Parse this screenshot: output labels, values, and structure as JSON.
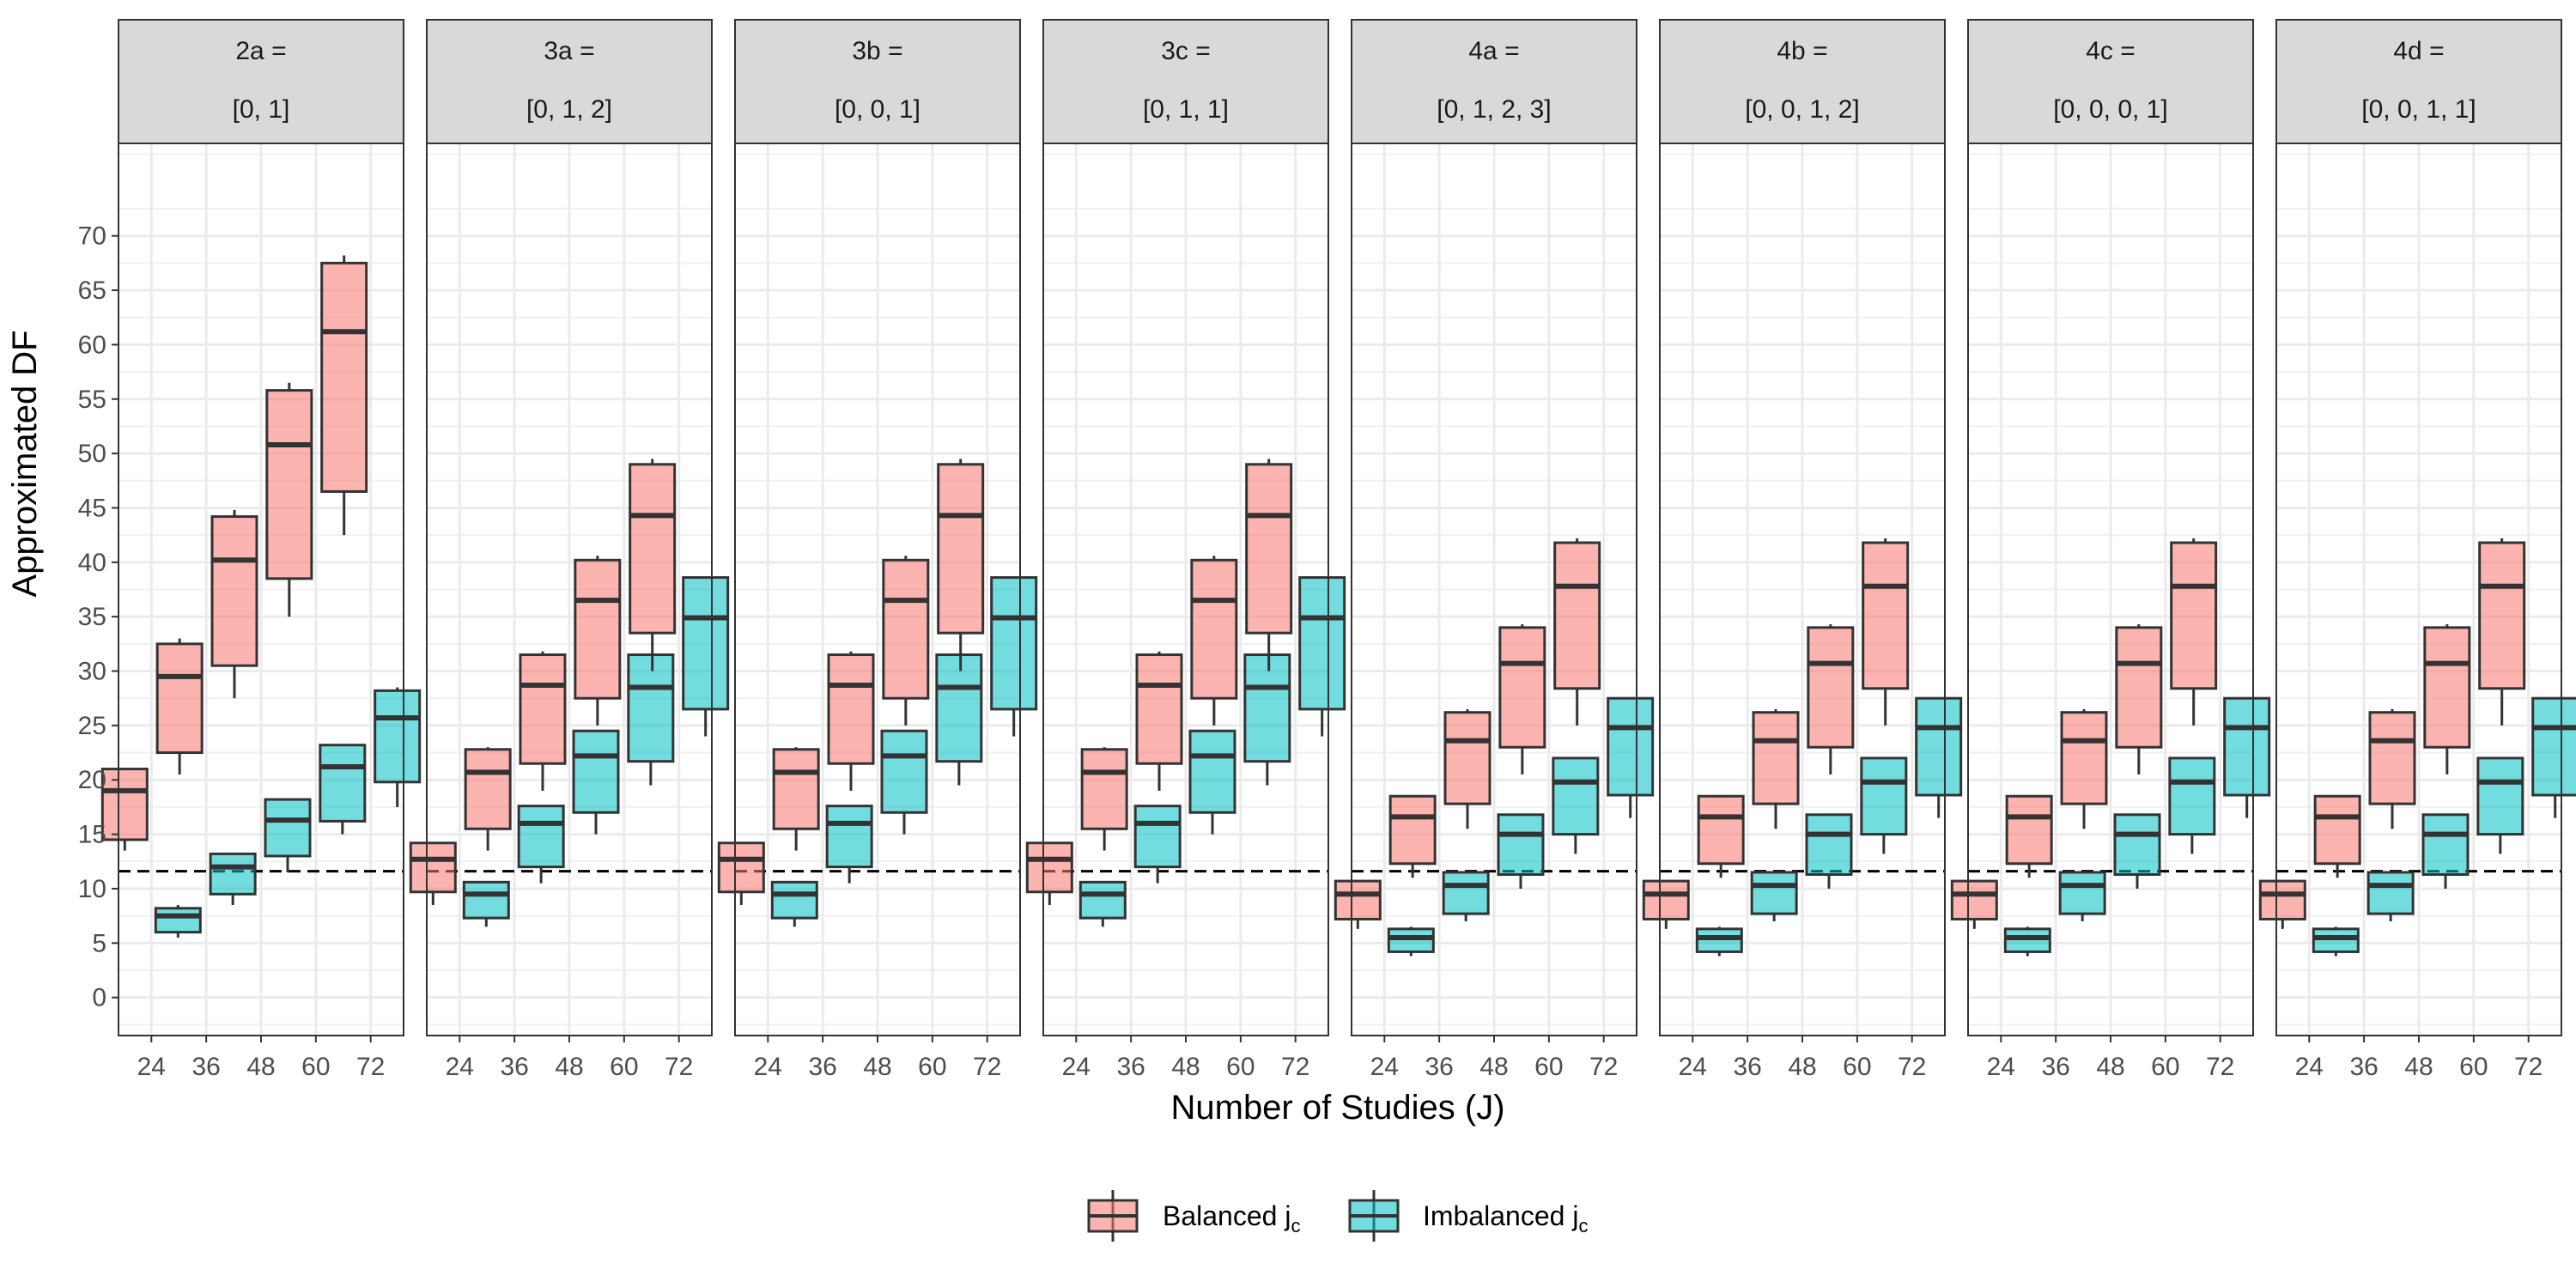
{
  "chart_data": {
    "type": "boxplot",
    "ylabel": "Approximated DF",
    "xlabel": "Number of Studies (J)",
    "categories": [
      "24",
      "36",
      "48",
      "60",
      "72"
    ],
    "y_ticks": [
      0,
      5,
      10,
      15,
      20,
      25,
      30,
      35,
      40,
      45,
      50,
      55,
      60,
      65,
      70
    ],
    "ylim": [
      -3.5,
      78.5
    ],
    "reference_line": 11.6,
    "legend": {
      "position": "bottom",
      "items": [
        {
          "base": "Balanced j",
          "sub": "c",
          "color": "#F8766D"
        },
        {
          "base": "Imbalanced j",
          "sub": "c",
          "color": "#00BFC4"
        }
      ]
    },
    "series_colors": [
      "#F8766D",
      "#00BFC4"
    ],
    "panels": [
      {
        "label_line1": "2a =",
        "label_line2": "[0, 1]",
        "balanced": [
          [
            13.5,
            14.5,
            19,
            21,
            21
          ],
          [
            20.5,
            22.5,
            29.5,
            32.5,
            33
          ],
          [
            27.5,
            30.5,
            40.2,
            44.2,
            44.8
          ],
          [
            35,
            38.5,
            50.8,
            55.8,
            56.5
          ],
          [
            42.5,
            46.5,
            61.2,
            67.5,
            68.2
          ]
        ],
        "imbalanced": [
          [
            5.5,
            6,
            7.5,
            8.2,
            8.5
          ],
          [
            8.5,
            9.5,
            12,
            13.2,
            13.2
          ],
          [
            11.5,
            13,
            16.3,
            18.2,
            18.2
          ],
          [
            15,
            16.2,
            21.2,
            23.2,
            23.2
          ],
          [
            17.5,
            19.8,
            25.7,
            28.2,
            28.5
          ]
        ]
      },
      {
        "label_line1": "3a =",
        "label_line2": "[0, 1, 2]",
        "balanced": [
          [
            8.5,
            9.7,
            12.7,
            14.2,
            14.2
          ],
          [
            13.5,
            15.5,
            20.7,
            22.8,
            23
          ],
          [
            19,
            21.5,
            28.7,
            31.5,
            31.8
          ],
          [
            25,
            27.5,
            36.5,
            40.2,
            40.6
          ],
          [
            30,
            33.5,
            44.3,
            49,
            49.5
          ]
        ],
        "imbalanced": [
          [
            6.5,
            7.3,
            9.5,
            10.6,
            10.6
          ],
          [
            10.5,
            12,
            16,
            17.6,
            17.6
          ],
          [
            15,
            17,
            22.2,
            24.5,
            24.5
          ],
          [
            19.5,
            21.7,
            28.5,
            31.5,
            31.5
          ],
          [
            24,
            26.5,
            34.9,
            38.6,
            38.6
          ]
        ]
      },
      {
        "label_line1": "3b =",
        "label_line2": "[0, 0, 1]",
        "balanced": [
          [
            8.5,
            9.7,
            12.7,
            14.2,
            14.2
          ],
          [
            13.5,
            15.5,
            20.7,
            22.8,
            23
          ],
          [
            19,
            21.5,
            28.7,
            31.5,
            31.8
          ],
          [
            25,
            27.5,
            36.5,
            40.2,
            40.6
          ],
          [
            30,
            33.5,
            44.3,
            49,
            49.5
          ]
        ],
        "imbalanced": [
          [
            6.5,
            7.3,
            9.5,
            10.6,
            10.6
          ],
          [
            10.5,
            12,
            16,
            17.6,
            17.6
          ],
          [
            15,
            17,
            22.2,
            24.5,
            24.5
          ],
          [
            19.5,
            21.7,
            28.5,
            31.5,
            31.5
          ],
          [
            24,
            26.5,
            34.9,
            38.6,
            38.6
          ]
        ]
      },
      {
        "label_line1": "3c =",
        "label_line2": "[0, 1, 1]",
        "balanced": [
          [
            8.5,
            9.7,
            12.7,
            14.2,
            14.2
          ],
          [
            13.5,
            15.5,
            20.7,
            22.8,
            23
          ],
          [
            19,
            21.5,
            28.7,
            31.5,
            31.8
          ],
          [
            25,
            27.5,
            36.5,
            40.2,
            40.6
          ],
          [
            30,
            33.5,
            44.3,
            49,
            49.5
          ]
        ],
        "imbalanced": [
          [
            6.5,
            7.3,
            9.5,
            10.6,
            10.6
          ],
          [
            10.5,
            12,
            16,
            17.6,
            17.6
          ],
          [
            15,
            17,
            22.2,
            24.5,
            24.5
          ],
          [
            19.5,
            21.7,
            28.5,
            31.5,
            31.5
          ],
          [
            24,
            26.5,
            34.9,
            38.6,
            38.6
          ]
        ]
      },
      {
        "label_line1": "4a =",
        "label_line2": "[0, 1, 2, 3]",
        "balanced": [
          [
            6.3,
            7.2,
            9.5,
            10.7,
            10.7
          ],
          [
            11,
            12.3,
            16.6,
            18.5,
            18.5
          ],
          [
            15.5,
            17.8,
            23.6,
            26.2,
            26.5
          ],
          [
            20.5,
            23,
            30.7,
            34,
            34.3
          ],
          [
            25,
            28.4,
            37.8,
            41.8,
            42.2
          ]
        ],
        "imbalanced": [
          [
            3.8,
            4.2,
            5.5,
            6.3,
            6.5
          ],
          [
            7,
            7.7,
            10.3,
            11.5,
            11.5
          ],
          [
            10,
            11.3,
            15,
            16.8,
            16.8
          ],
          [
            13.2,
            15,
            19.8,
            22,
            22
          ],
          [
            16.5,
            18.6,
            24.8,
            27.5,
            27.5
          ]
        ]
      },
      {
        "label_line1": "4b =",
        "label_line2": "[0, 0, 1, 2]",
        "balanced": [
          [
            6.3,
            7.2,
            9.5,
            10.7,
            10.7
          ],
          [
            11,
            12.3,
            16.6,
            18.5,
            18.5
          ],
          [
            15.5,
            17.8,
            23.6,
            26.2,
            26.5
          ],
          [
            20.5,
            23,
            30.7,
            34,
            34.3
          ],
          [
            25,
            28.4,
            37.8,
            41.8,
            42.2
          ]
        ],
        "imbalanced": [
          [
            3.8,
            4.2,
            5.5,
            6.3,
            6.5
          ],
          [
            7,
            7.7,
            10.3,
            11.5,
            11.5
          ],
          [
            10,
            11.3,
            15,
            16.8,
            16.8
          ],
          [
            13.2,
            15,
            19.8,
            22,
            22
          ],
          [
            16.5,
            18.6,
            24.8,
            27.5,
            27.5
          ]
        ]
      },
      {
        "label_line1": "4c =",
        "label_line2": "[0, 0, 0, 1]",
        "balanced": [
          [
            6.3,
            7.2,
            9.5,
            10.7,
            10.7
          ],
          [
            11,
            12.3,
            16.6,
            18.5,
            18.5
          ],
          [
            15.5,
            17.8,
            23.6,
            26.2,
            26.5
          ],
          [
            20.5,
            23,
            30.7,
            34,
            34.3
          ],
          [
            25,
            28.4,
            37.8,
            41.8,
            42.2
          ]
        ],
        "imbalanced": [
          [
            3.8,
            4.2,
            5.5,
            6.3,
            6.5
          ],
          [
            7,
            7.7,
            10.3,
            11.5,
            11.5
          ],
          [
            10,
            11.3,
            15,
            16.8,
            16.8
          ],
          [
            13.2,
            15,
            19.8,
            22,
            22
          ],
          [
            16.5,
            18.6,
            24.8,
            27.5,
            27.5
          ]
        ]
      },
      {
        "label_line1": "4d =",
        "label_line2": "[0, 0, 1, 1]",
        "balanced": [
          [
            6.3,
            7.2,
            9.5,
            10.7,
            10.7
          ],
          [
            11,
            12.3,
            16.6,
            18.5,
            18.5
          ],
          [
            15.5,
            17.8,
            23.6,
            26.2,
            26.5
          ],
          [
            20.5,
            23,
            30.7,
            34,
            34.3
          ],
          [
            25,
            28.4,
            37.8,
            41.8,
            42.2
          ]
        ],
        "imbalanced": [
          [
            3.8,
            4.2,
            5.5,
            6.3,
            6.5
          ],
          [
            7,
            7.7,
            10.3,
            11.5,
            11.5
          ],
          [
            10,
            11.3,
            15,
            16.8,
            16.8
          ],
          [
            13.2,
            15,
            19.8,
            22,
            22
          ],
          [
            16.5,
            18.6,
            24.8,
            27.5,
            27.5
          ]
        ]
      }
    ]
  }
}
